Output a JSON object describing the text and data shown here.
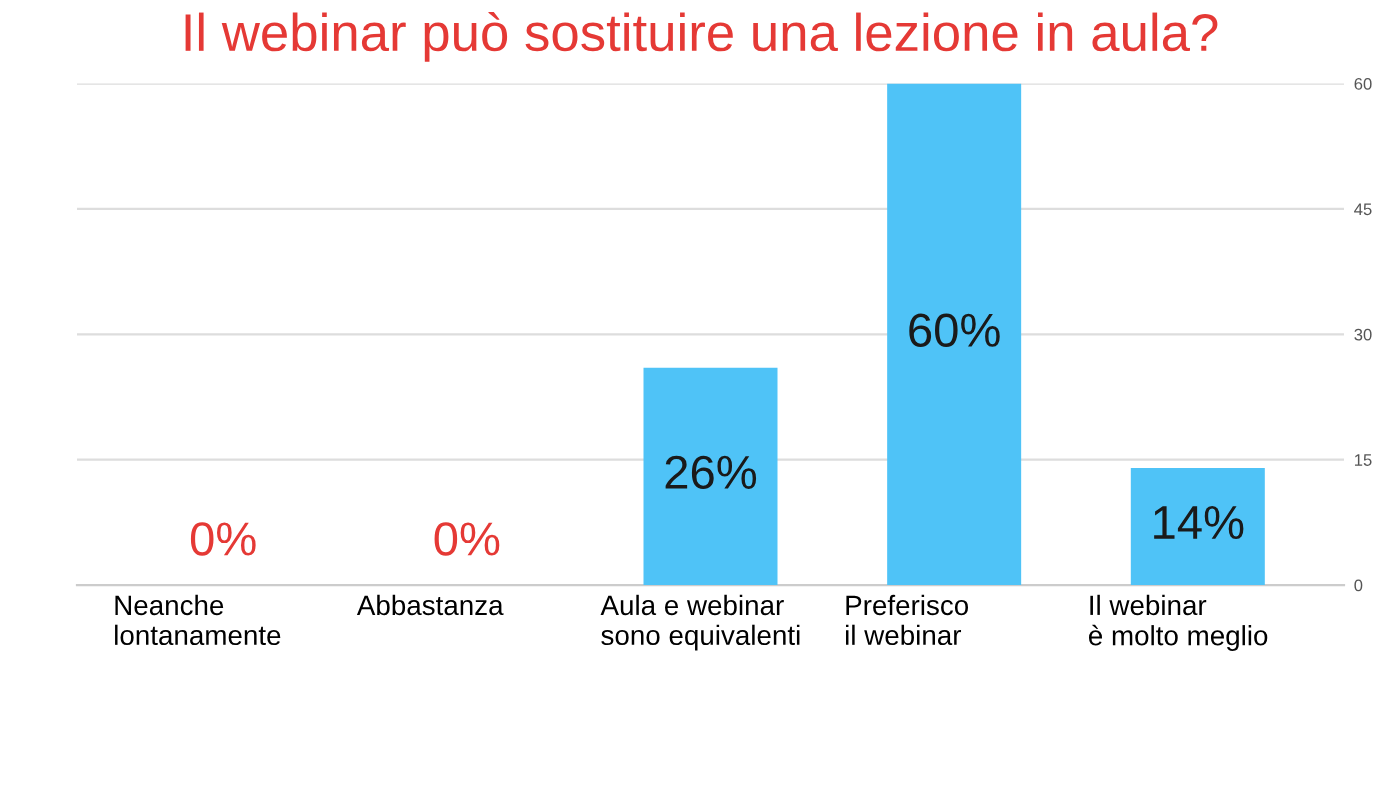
{
  "chart_data": {
    "type": "bar",
    "title": "Il webinar può sostituire una lezione in aula?",
    "categories": [
      "Neanche\nlontanamente",
      "Abbastanza",
      "Aula e webinar\nsono equivalenti",
      "Preferisco\nil webinar",
      "Il webinar\nè molto meglio"
    ],
    "values": [
      0,
      0,
      26,
      60,
      14
    ],
    "value_labels": [
      "0%",
      "0%",
      "26%",
      "60%",
      "14%"
    ],
    "color": "#4fc3f7",
    "ylim": [
      0,
      60
    ],
    "yticks": [
      0,
      15,
      30,
      45,
      60
    ],
    "grid": "y"
  }
}
